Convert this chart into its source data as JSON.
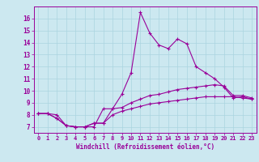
{
  "xlabel": "Windchill (Refroidissement éolien,°C)",
  "background_color": "#cce8f0",
  "grid_color": "#aad4e0",
  "line_color": "#990099",
  "xlim": [
    -0.5,
    23.5
  ],
  "ylim": [
    6.5,
    17.0
  ],
  "xticks": [
    0,
    1,
    2,
    3,
    4,
    5,
    6,
    7,
    8,
    9,
    10,
    11,
    12,
    13,
    14,
    15,
    16,
    17,
    18,
    19,
    20,
    21,
    22,
    23
  ],
  "yticks": [
    7,
    8,
    9,
    10,
    11,
    12,
    13,
    14,
    15,
    16
  ],
  "line1_x": [
    0,
    1,
    2,
    3,
    4,
    5,
    6,
    7,
    8,
    9,
    10,
    11,
    12,
    13,
    14,
    15,
    16,
    17,
    18,
    19,
    20,
    21,
    22,
    23
  ],
  "line1_y": [
    8.1,
    8.1,
    8.0,
    7.1,
    7.0,
    7.0,
    7.0,
    8.5,
    8.5,
    9.7,
    11.5,
    16.5,
    14.8,
    13.8,
    13.5,
    14.3,
    13.9,
    12.0,
    11.5,
    11.0,
    10.3,
    9.4,
    9.5,
    9.3
  ],
  "line2_x": [
    0,
    1,
    2,
    3,
    4,
    5,
    6,
    7,
    8,
    9,
    10,
    11,
    12,
    13,
    14,
    15,
    16,
    17,
    18,
    19,
    20,
    21,
    22,
    23
  ],
  "line2_y": [
    8.1,
    8.1,
    7.7,
    7.1,
    7.0,
    7.0,
    7.3,
    7.3,
    8.5,
    8.6,
    9.0,
    9.3,
    9.6,
    9.7,
    9.9,
    10.1,
    10.2,
    10.3,
    10.4,
    10.5,
    10.4,
    9.6,
    9.6,
    9.4
  ],
  "line3_x": [
    0,
    1,
    2,
    3,
    4,
    5,
    6,
    7,
    8,
    9,
    10,
    11,
    12,
    13,
    14,
    15,
    16,
    17,
    18,
    19,
    20,
    21,
    22,
    23
  ],
  "line3_y": [
    8.1,
    8.1,
    7.7,
    7.1,
    7.0,
    7.0,
    7.3,
    7.3,
    8.0,
    8.3,
    8.5,
    8.7,
    8.9,
    9.0,
    9.1,
    9.2,
    9.3,
    9.4,
    9.5,
    9.5,
    9.5,
    9.5,
    9.4,
    9.3
  ]
}
